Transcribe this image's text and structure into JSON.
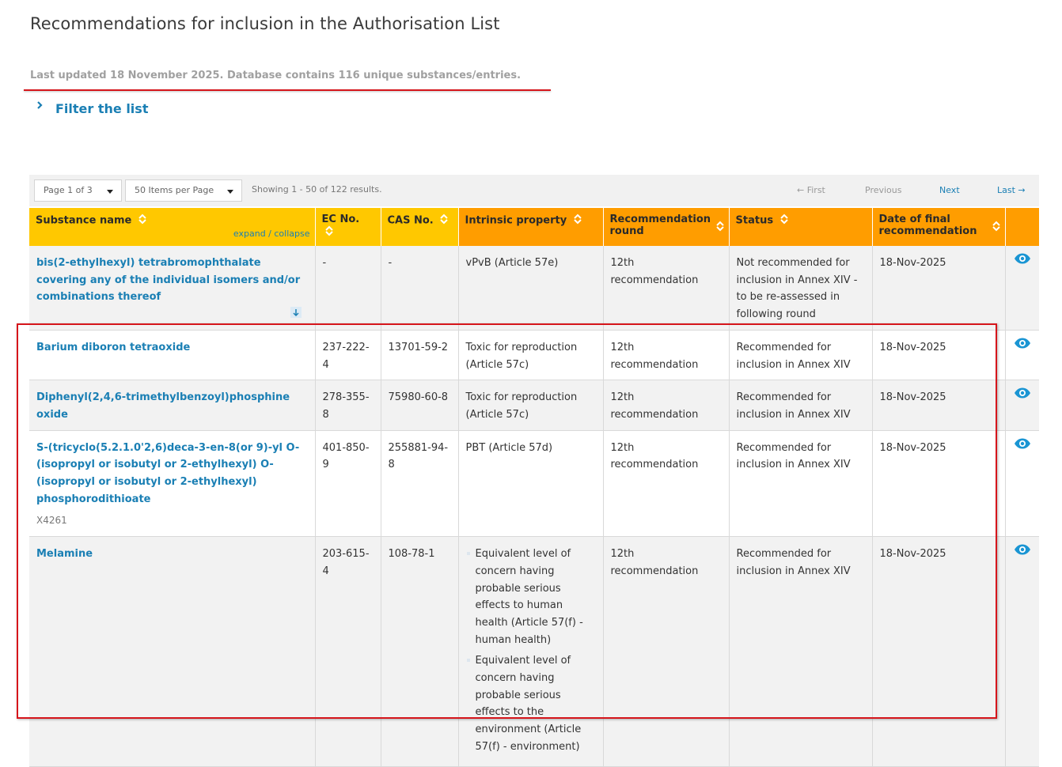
{
  "page": {
    "title": "Recommendations for inclusion in the Authorisation List",
    "last_updated": "Last updated 18 November 2025. Database contains 116 unique substances/entries.",
    "filter_label": "Filter the list"
  },
  "pager": {
    "page_select": "Page 1 of 3",
    "per_page_select": "50 Items per Page",
    "showing": "Showing 1 - 50 of 122 results.",
    "first": "← First",
    "previous": "Previous",
    "next": "Next",
    "last": "Last →"
  },
  "table": {
    "headers": {
      "substance": "Substance name",
      "expand_collapse": "expand / collapse",
      "ec": "EC No.",
      "cas": "CAS No.",
      "property": "Intrinsic property",
      "round": "Recommendation round",
      "status": "Status",
      "date": "Date of final recommendation"
    },
    "rows": [
      {
        "name": "bis(2-ethylhexyl) tetrabromophthalate covering any of the individual isomers and/or combinations thereof",
        "ec": "-",
        "cas": "-",
        "property": "vPvB (Article 57e)",
        "round": "12th recommendation",
        "status": "Not recommended for inclusion in Annex XIV - to be re-assessed in following round",
        "date": "18-Nov-2025"
      },
      {
        "name": "Barium diboron tetraoxide",
        "ec": "237-222-4",
        "cas": "13701-59-2",
        "property": "Toxic for reproduction (Article 57c)",
        "round": "12th recommendation",
        "status": "Recommended for inclusion in Annex XIV",
        "date": "18-Nov-2025"
      },
      {
        "name": "Diphenyl(2,4,6-trimethylbenzoyl)phosphine oxide",
        "ec": "278-355-8",
        "cas": "75980-60-8",
        "property": "Toxic for reproduction (Article 57c)",
        "round": "12th recommendation",
        "status": "Recommended for inclusion in Annex XIV",
        "date": "18-Nov-2025"
      },
      {
        "name": "S-(tricyclo(5.2.1.0'2,6)deca-3-en-8(or 9)-yl O-(isopropyl or isobutyl or 2-ethylhexyl) O-(isopropyl or isobutyl or 2-ethylhexyl) phosphorodithioate",
        "note": "X4261",
        "ec": "401-850-9",
        "cas": "255881-94-8",
        "property": "PBT (Article 57d)",
        "round": "12th recommendation",
        "status": "Recommended for inclusion in Annex XIV",
        "date": "18-Nov-2025"
      },
      {
        "name": "Melamine",
        "ec": "203-615-4",
        "cas": "108-78-1",
        "property_1": "Equivalent level of concern having probable serious effects to human health (Article 57(f) - human health)",
        "property_2": "Equivalent level of concern having probable serious effects to the environment (Article 57(f) - environment)",
        "round": "12th recommendation",
        "status": "Recommended for inclusion in Annex XIV",
        "date": "18-Nov-2025"
      }
    ]
  },
  "colors": {
    "header_yellow": "#ffc800",
    "header_orange": "#ff9d00",
    "link_blue": "#1a7fb4",
    "annotation_red": "#d6151b"
  },
  "icons": {
    "sort": "sort-arrows-icon",
    "view": "eye-icon",
    "filter_toggle": "chevron-right-icon",
    "row_expand": "arrow-down-icon"
  }
}
